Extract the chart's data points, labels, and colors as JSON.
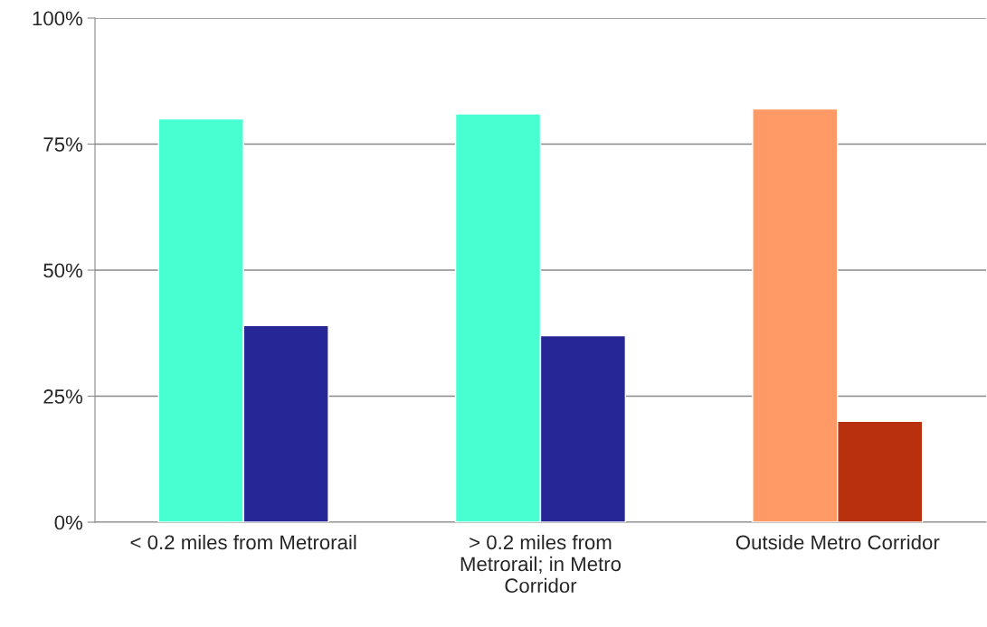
{
  "chart_data": {
    "type": "bar",
    "categories": [
      "< 0.2 miles from Metrorail",
      "> 0.2 miles from Metrorail; in Metro Corridor",
      "Outside Metro Corridor"
    ],
    "series": [
      {
        "colors": [
          "#48ffd1",
          "#48ffd1",
          "#ff9a66"
        ],
        "values": [
          80,
          81,
          82
        ]
      },
      {
        "colors": [
          "#262696",
          "#262696",
          "#b8300c"
        ],
        "values": [
          39,
          37,
          20
        ]
      }
    ],
    "ylim": [
      0,
      100
    ],
    "yticks": [
      {
        "value": 0,
        "label": "0%"
      },
      {
        "value": 25,
        "label": "25%"
      },
      {
        "value": 50,
        "label": "50%"
      },
      {
        "value": 75,
        "label": "75%"
      },
      {
        "value": 100,
        "label": "100%"
      }
    ],
    "grid": "y",
    "legend": false
  }
}
